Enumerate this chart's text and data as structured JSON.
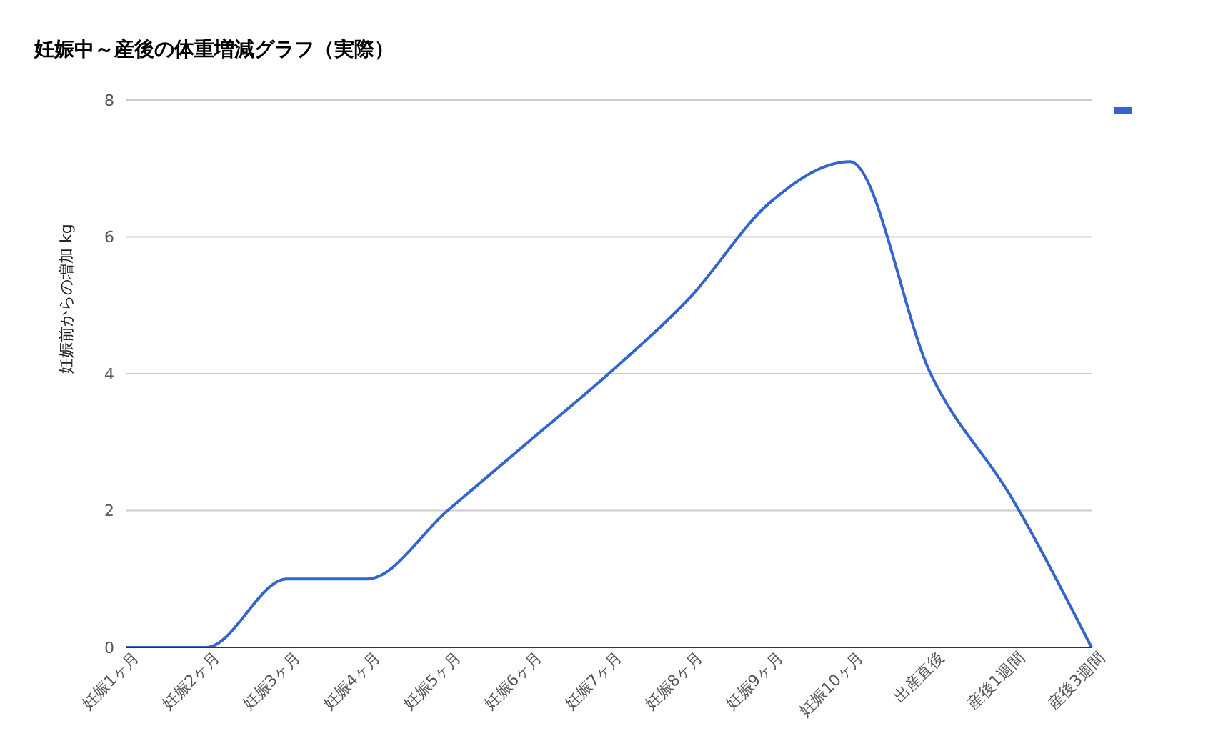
{
  "chart_data": {
    "type": "line",
    "title": "妊娠中～産後の体重増減グラフ（実際）",
    "ylabel": "妊娠前からの増加 kg",
    "categories": [
      "妊娠1ヶ月",
      "妊娠2ヶ月",
      "妊娠3ヶ月",
      "妊娠4ヶ月",
      "妊娠5ヶ月",
      "妊娠6ヶ月",
      "妊娠7ヶ月",
      "妊娠8ヶ月",
      "妊娠9ヶ月",
      "妊娠10ヶ月",
      "出産直後",
      "産後1週間",
      "産後3週間"
    ],
    "series": [
      {
        "color": "#3366cc",
        "values": [
          0,
          0,
          1.0,
          1.0,
          2.0,
          3.0,
          4.0,
          5.1,
          6.5,
          7.1,
          4.0,
          2.2,
          0
        ]
      }
    ],
    "ylim": [
      0,
      8
    ],
    "yticks": [
      0,
      2,
      4,
      6,
      8
    ],
    "grid": "y",
    "marker": "none",
    "line_style": "solid"
  }
}
